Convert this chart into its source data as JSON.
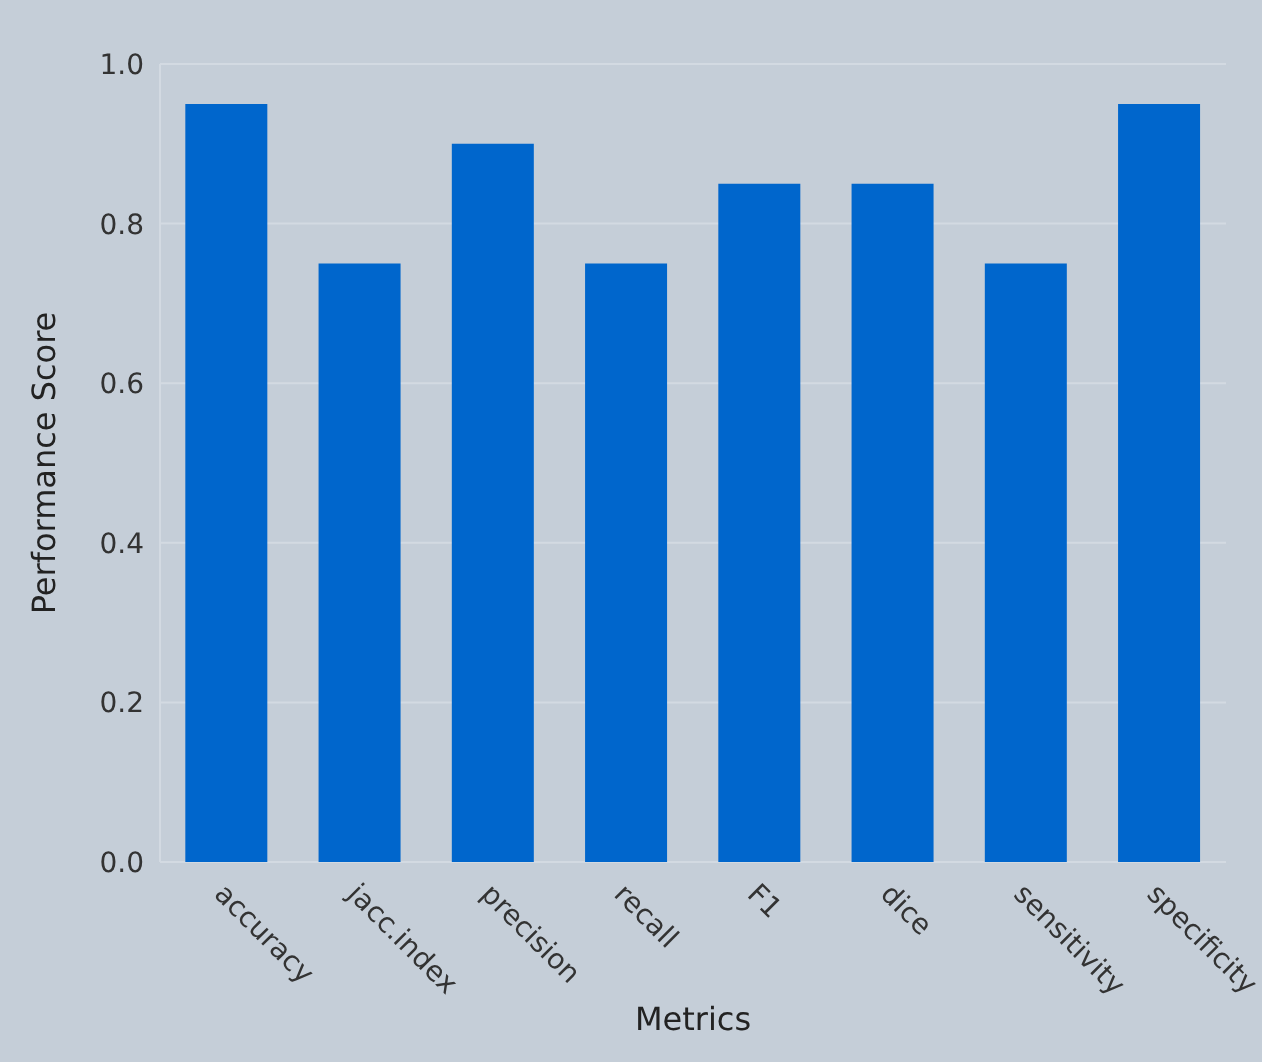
{
  "chart_data": {
    "type": "bar",
    "xlabel": "Metrics",
    "ylabel": "Performance Score",
    "categories": [
      "accuracy",
      "jacc.index",
      "precision",
      "recall",
      "F1",
      "dice",
      "sensitivity",
      "specificity"
    ],
    "values": [
      0.95,
      0.75,
      0.9,
      0.75,
      0.85,
      0.85,
      0.75,
      0.95
    ],
    "color": "#0066cc",
    "ylim": [
      0,
      1
    ],
    "yticks": [
      {
        "value": 0,
        "label": "0.0"
      },
      {
        "value": 0.2,
        "label": "0.2"
      },
      {
        "value": 0.4,
        "label": "0.4"
      },
      {
        "value": 0.6,
        "label": "0.6"
      },
      {
        "value": 0.8,
        "label": "0.8"
      },
      {
        "value": 1,
        "label": "1.0"
      }
    ],
    "grid": "y",
    "legend": false
  }
}
